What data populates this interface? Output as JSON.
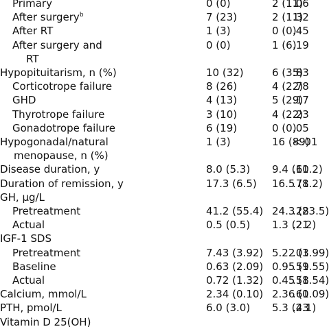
{
  "table": {
    "rows": [
      {
        "label": [
          "Primary"
        ],
        "level": 1,
        "cells": [
          "0 (0)",
          "2 (11)",
          ".06"
        ]
      },
      {
        "label": [
          "After surgery"
        ],
        "sup": "b",
        "level": 1,
        "cells": [
          "7 (23)",
          "2 (11)",
          ".32"
        ]
      },
      {
        "label": [
          "After RT"
        ],
        "level": 1,
        "cells": [
          "1 (3)",
          "0 (0)",
          ".45"
        ]
      },
      {
        "label": [
          "After surgery and",
          "RT"
        ],
        "level": 1,
        "cells": [
          "0 (0)",
          "1 (6)",
          ".19"
        ]
      },
      {
        "label": [
          "Hypopituitarism, n (%)"
        ],
        "level": 0,
        "cells": [
          "10 (32)",
          "6 (35)",
          ".83"
        ]
      },
      {
        "label": [
          "Corticotrope failure"
        ],
        "level": 1,
        "cells": [
          "8 (26)",
          "4 (22)",
          ".78"
        ]
      },
      {
        "label": [
          "GHD"
        ],
        "level": 1,
        "cells": [
          "4 (13)",
          "5 (29)",
          ".17"
        ]
      },
      {
        "label": [
          "Thyrotrope failure"
        ],
        "level": 1,
        "cells": [
          "3 (10)",
          "4 (22)",
          ".23"
        ]
      },
      {
        "label": [
          "Gonadotrope failure"
        ],
        "level": 1,
        "cells": [
          "6 (19)",
          "0 (0)",
          ".05"
        ]
      },
      {
        "label": [
          "Hypogonadal/natural",
          "menopause, n (%)"
        ],
        "level": 0,
        "cells": [
          "1 (3)",
          "16 (89)",
          "<.01"
        ]
      },
      {
        "label": [
          "Disease duration, y"
        ],
        "level": 0,
        "cells": [
          "8.0 (5.3)",
          "9.4 (11.2)",
          ".60"
        ]
      },
      {
        "label": [
          "Duration of remission, y"
        ],
        "level": 0,
        "cells": [
          "17.3 (6.5)",
          "16.5 (8.2)",
          ".71"
        ]
      },
      {
        "label": [
          "GH, μg/L"
        ],
        "level": 0,
        "cells": []
      },
      {
        "label": [
          "Pretreatment"
        ],
        "level": 1,
        "cells": [
          "41.2 (55.4)",
          "24.3 (23.5)",
          ".28"
        ]
      },
      {
        "label": [
          "Actual"
        ],
        "level": 1,
        "cells": [
          "0.5 (0.5)",
          "1.3 (2.2)",
          ".21"
        ]
      },
      {
        "label": [
          "IGF-1 SDS"
        ],
        "level": 0,
        "cells": []
      },
      {
        "label": [
          "Pretreatment"
        ],
        "level": 1,
        "cells": [
          "7.43 (3.92)",
          "5.22 (1.99)",
          ".03"
        ]
      },
      {
        "label": [
          "Baseline"
        ],
        "level": 1,
        "cells": [
          "0.63 (2.09)",
          "0.95 (1.55)",
          ".59"
        ]
      },
      {
        "label": [
          "Actual"
        ],
        "level": 1,
        "cells": [
          "0.72 (1.32)",
          "0.45 (1.54)",
          ".58"
        ]
      },
      {
        "label": [
          "Calcium, mmol/L"
        ],
        "level": 0,
        "cells": [
          "2.34 (0.10)",
          "2.36 (0.09)",
          ".61"
        ]
      },
      {
        "label": [
          "PTH, pmol/L"
        ],
        "level": 0,
        "cells": [
          "6.0 (3.0)",
          "5.3 (2.1)",
          ".43"
        ]
      },
      {
        "label": [
          "Vitamin D 25(OH)"
        ],
        "level": 0,
        "cells": []
      }
    ]
  }
}
